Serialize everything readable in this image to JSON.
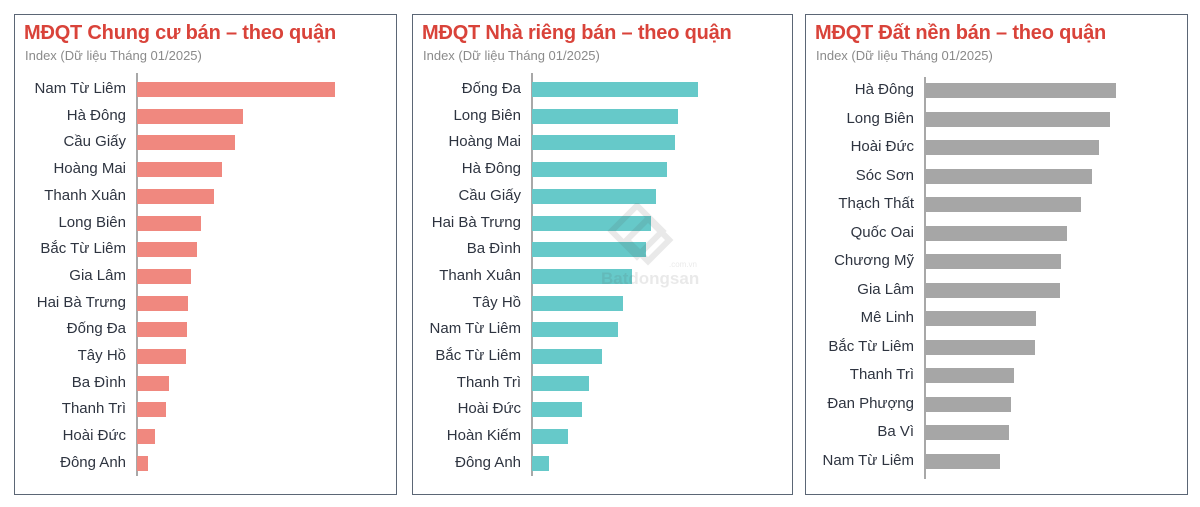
{
  "chart_data": [
    {
      "type": "bar",
      "orientation": "horizontal",
      "title": "MĐQT Chung cư bán – theo quận",
      "subtitle": "Index (Dữ liệu Tháng 01/2025)",
      "color": "#f0887f",
      "xlabel": "",
      "ylabel": "",
      "value_unit": "relative bar length (px, no numeric axis shown)",
      "grid": false,
      "categories": [
        "Nam Từ Liêm",
        "Hà Đông",
        "Cầu Giấy",
        "Hoàng Mai",
        "Thanh Xuân",
        "Long Biên",
        "Bắc Từ Liêm",
        "Gia Lâm",
        "Hai Bà Trưng",
        "Đống Đa",
        "Tây Hồ",
        "Ba Đình",
        "Thanh Trì",
        "Hoài Đức",
        "Đông Anh"
      ],
      "values": [
        198,
        106,
        98,
        85,
        77,
        64,
        60,
        54,
        51,
        50,
        49,
        32,
        29,
        18,
        11
      ]
    },
    {
      "type": "bar",
      "orientation": "horizontal",
      "title": "MĐQT Nhà riêng bán – theo quận",
      "subtitle": "Index (Dữ liệu Tháng 01/2025)",
      "color": "#66c9c9",
      "xlabel": "",
      "ylabel": "",
      "value_unit": "relative bar length (px, no numeric axis shown)",
      "grid": false,
      "categories": [
        "Đống Đa",
        "Long Biên",
        "Hoàng Mai",
        "Hà Đông",
        "Cầu Giấy",
        "Hai Bà Trưng",
        "Ba Đình",
        "Thanh Xuân",
        "Tây Hồ",
        "Nam Từ Liêm",
        "Bắc Từ Liêm",
        "Thanh Trì",
        "Hoài Đức",
        "Hoàn Kiếm",
        "Đông Anh"
      ],
      "values": [
        166,
        146,
        143,
        135,
        124,
        119,
        114,
        100,
        91,
        86,
        70,
        57,
        50,
        36,
        17
      ]
    },
    {
      "type": "bar",
      "orientation": "horizontal",
      "title": "MĐQT Đất nền bán – theo quận",
      "subtitle": "Index (Dữ liệu Tháng 01/2025)",
      "color": "#a6a6a6",
      "xlabel": "",
      "ylabel": "",
      "value_unit": "relative bar length (px, no numeric axis shown)",
      "grid": false,
      "categories": [
        "Hà Đông",
        "Long Biên",
        "Hoài Đức",
        "Sóc Sơn",
        "Thạch Thất",
        "Quốc Oai",
        "Chương Mỹ",
        "Gia Lâm",
        "Mê Linh",
        "Bắc Từ Liêm",
        "Thanh Trì",
        "Đan Phượng",
        "Ba Vì",
        "Nam Từ Liêm"
      ],
      "values": [
        191,
        185,
        174,
        167,
        156,
        142,
        136,
        135,
        111,
        110,
        89,
        86,
        84,
        75
      ]
    }
  ],
  "watermark": {
    "brand": "Batdongsan",
    "domain": ".com.vn"
  }
}
